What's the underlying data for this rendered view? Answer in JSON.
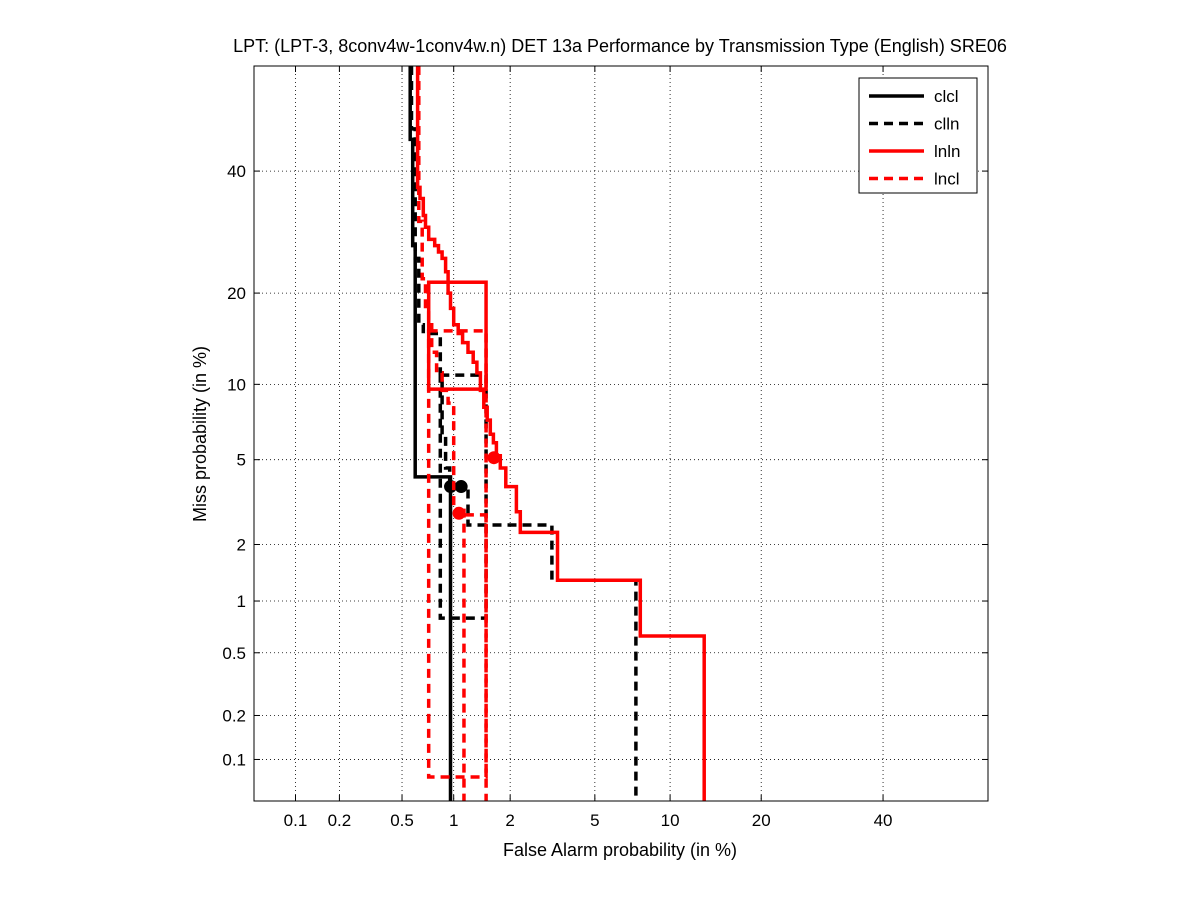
{
  "chart_data": {
    "type": "line",
    "title": "LPT: (LPT-3, 8conv4w-1conv4w.n) DET 13a Performance by Transmission Type (English) SRE06",
    "xlabel": "False Alarm probability (in %)",
    "ylabel": "Miss probability (in %)",
    "scale": "normal-deviate (probit) on both axes",
    "xlim": [
      0.05,
      60
    ],
    "ylim": [
      0.05,
      60
    ],
    "xticks": [
      0.1,
      0.2,
      0.5,
      1,
      2,
      5,
      10,
      20,
      40
    ],
    "xtick_labels": [
      "0.1",
      "0.2",
      "0.5",
      "1",
      "2",
      "5",
      "10",
      "20",
      "40"
    ],
    "yticks": [
      0.1,
      0.2,
      0.5,
      1,
      2,
      5,
      10,
      20,
      40
    ],
    "ytick_labels": [
      "0.1",
      "0.2",
      "0.5",
      "1",
      "2",
      "5",
      "10",
      "20",
      "40"
    ],
    "grid": true,
    "legend_position": "top-right",
    "series": [
      {
        "name": "clcl",
        "color": "#000000",
        "dash": "solid",
        "points": [
          [
            0.56,
            60
          ],
          [
            0.56,
            46
          ],
          [
            0.58,
            46
          ],
          [
            0.58,
            27
          ],
          [
            0.6,
            27
          ],
          [
            0.6,
            4.2
          ],
          [
            0.96,
            4.2
          ],
          [
            0.96,
            0.05
          ]
        ],
        "marker": [
          0.96,
          3.8
        ],
        "box": null
      },
      {
        "name": "clln",
        "color": "#000000",
        "dash": "dashed",
        "points": [
          [
            0.57,
            60
          ],
          [
            0.57,
            48
          ],
          [
            0.6,
            48
          ],
          [
            0.6,
            25
          ],
          [
            0.63,
            25
          ],
          [
            0.63,
            16
          ],
          [
            0.67,
            16
          ],
          [
            0.67,
            15
          ],
          [
            0.84,
            15
          ],
          [
            0.84,
            11
          ],
          [
            0.86,
            11
          ],
          [
            0.86,
            6.3
          ],
          [
            0.9,
            6.3
          ],
          [
            0.9,
            4.6
          ],
          [
            0.95,
            4.6
          ],
          [
            0.95,
            3.8
          ],
          [
            1.2,
            3.8
          ],
          [
            1.2,
            2.5
          ],
          [
            3.2,
            2.5
          ],
          [
            3.2,
            1.3
          ],
          [
            7.4,
            1.3
          ],
          [
            7.4,
            0.05
          ]
        ],
        "marker": [
          1.1,
          3.8
        ],
        "box": [
          0.84,
          1.5,
          0.8,
          10.8
        ]
      },
      {
        "name": "lnln",
        "color": "#ff0000",
        "dash": "solid",
        "points": [
          [
            0.62,
            60
          ],
          [
            0.62,
            37
          ],
          [
            0.64,
            37
          ],
          [
            0.64,
            35
          ],
          [
            0.67,
            35
          ],
          [
            0.67,
            32
          ],
          [
            0.69,
            32
          ],
          [
            0.69,
            30
          ],
          [
            0.72,
            30
          ],
          [
            0.72,
            28
          ],
          [
            0.78,
            28
          ],
          [
            0.78,
            27
          ],
          [
            0.82,
            27
          ],
          [
            0.82,
            26
          ],
          [
            0.86,
            26
          ],
          [
            0.86,
            25
          ],
          [
            0.9,
            25
          ],
          [
            0.9,
            23
          ],
          [
            0.93,
            23
          ],
          [
            0.93,
            20
          ],
          [
            0.96,
            20
          ],
          [
            0.96,
            18
          ],
          [
            1.0,
            18
          ],
          [
            1.0,
            16
          ],
          [
            1.06,
            16
          ],
          [
            1.06,
            15
          ],
          [
            1.12,
            15
          ],
          [
            1.12,
            14
          ],
          [
            1.2,
            14
          ],
          [
            1.2,
            13
          ],
          [
            1.28,
            13
          ],
          [
            1.28,
            12
          ],
          [
            1.34,
            12
          ],
          [
            1.34,
            11
          ],
          [
            1.4,
            11
          ],
          [
            1.4,
            9.5
          ],
          [
            1.46,
            9.5
          ],
          [
            1.46,
            8.2
          ],
          [
            1.52,
            8.2
          ],
          [
            1.52,
            7.3
          ],
          [
            1.58,
            7.3
          ],
          [
            1.58,
            6.4
          ],
          [
            1.64,
            6.4
          ],
          [
            1.64,
            5.9
          ],
          [
            1.7,
            5.9
          ],
          [
            1.7,
            5.2
          ],
          [
            1.78,
            5.2
          ],
          [
            1.78,
            4.6
          ],
          [
            1.9,
            4.6
          ],
          [
            1.9,
            3.8
          ],
          [
            2.15,
            3.8
          ],
          [
            2.15,
            2.9
          ],
          [
            2.25,
            2.9
          ],
          [
            2.25,
            2.3
          ],
          [
            3.4,
            2.3
          ],
          [
            3.4,
            1.3
          ],
          [
            7.7,
            1.3
          ],
          [
            7.7,
            0.63
          ],
          [
            13.2,
            0.63
          ],
          [
            13.2,
            0.05
          ]
        ],
        "marker": [
          1.65,
          5.1
        ],
        "box": [
          0.72,
          1.5,
          9.6,
          21.5
        ]
      },
      {
        "name": "lncl",
        "color": "#ff0000",
        "dash": "dashed",
        "points": [
          [
            0.63,
            60
          ],
          [
            0.63,
            31
          ],
          [
            0.66,
            31
          ],
          [
            0.66,
            22
          ],
          [
            0.69,
            22
          ],
          [
            0.69,
            18
          ],
          [
            0.72,
            18
          ],
          [
            0.72,
            16
          ],
          [
            0.75,
            16
          ],
          [
            0.75,
            13
          ],
          [
            0.8,
            13
          ],
          [
            0.8,
            11
          ],
          [
            0.86,
            11
          ],
          [
            0.86,
            9.5
          ],
          [
            0.93,
            9.5
          ],
          [
            0.93,
            8.5
          ],
          [
            1.0,
            8.5
          ],
          [
            1.0,
            3.1
          ],
          [
            1.05,
            3.1
          ],
          [
            1.05,
            2.9
          ],
          [
            1.12,
            2.9
          ],
          [
            1.12,
            2.8
          ],
          [
            1.5,
            2.8
          ],
          [
            1.5,
            0.05
          ]
        ],
        "marker": [
          1.07,
          2.85
        ],
        "box": [
          0.72,
          1.5,
          0.075,
          15.3
        ],
        "inner_line": [
          1.14,
          3.0,
          0.05
        ]
      }
    ]
  }
}
